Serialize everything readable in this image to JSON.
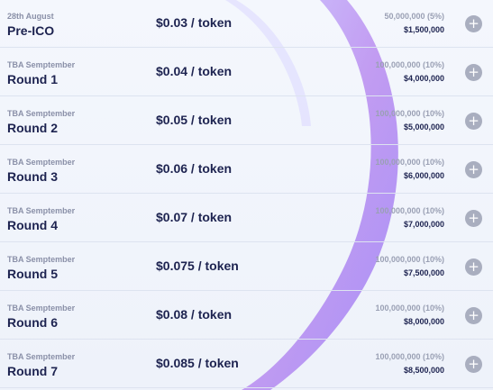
{
  "rounds": [
    {
      "date": "28th August",
      "name": "Pre-ICO",
      "price": "$0.03 / token",
      "supply": "50,000,000 (5%)",
      "raise": "$1,500,000"
    },
    {
      "date": "TBA Semptember",
      "name": "Round 1",
      "price": "$0.04 / token",
      "supply": "100,000,000 (10%)",
      "raise": "$4,000,000"
    },
    {
      "date": "TBA Semptember",
      "name": "Round 2",
      "price": "$0.05 / token",
      "supply": "100,000,000 (10%)",
      "raise": "$5,000,000"
    },
    {
      "date": "TBA Semptember",
      "name": "Round 3",
      "price": "$0.06 / token",
      "supply": "100,000,000 (10%)",
      "raise": "$6,000,000"
    },
    {
      "date": "TBA Semptember",
      "name": "Round 4",
      "price": "$0.07 / token",
      "supply": "100,000,000 (10%)",
      "raise": "$7,000,000"
    },
    {
      "date": "TBA Semptember",
      "name": "Round 5",
      "price": "$0.075 / token",
      "supply": "100,000,000 (10%)",
      "raise": "$7,500,000"
    },
    {
      "date": "TBA Semptember",
      "name": "Round 6",
      "price": "$0.08 / token",
      "supply": "100,000,000 (10%)",
      "raise": "$8,000,000"
    },
    {
      "date": "TBA Semptember",
      "name": "Round 7",
      "price": "$0.085 / token",
      "supply": "100,000,000 (10%)",
      "raise": "$8,500,000"
    }
  ],
  "expand_icon": "plus-icon",
  "colors": {
    "text_dark": "#1d2350",
    "text_muted": "#8a90a8",
    "accent_purple": "#b98cf0",
    "icon_bg": "#a9aebf"
  }
}
